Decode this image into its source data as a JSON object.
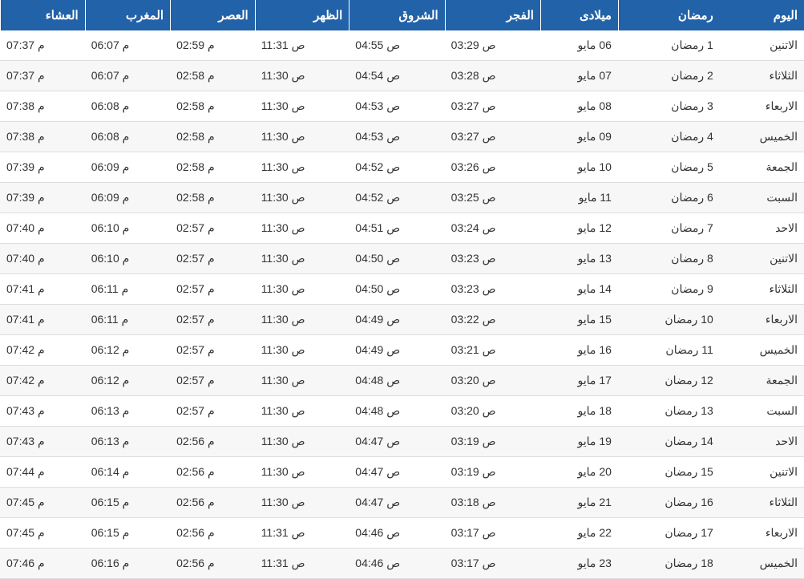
{
  "table": {
    "type": "table",
    "header_bg": "#2262a8",
    "header_color": "#ffffff",
    "row_alt_bg": "#f7f7f7",
    "row_bg": "#ffffff",
    "border_color": "#dddddd",
    "text_color": "#333333",
    "columns": [
      "اليوم",
      "رمضان",
      "ميلادى",
      "الفجر",
      "الشروق",
      "الظهر",
      "العصر",
      "المغرب",
      "العشاء"
    ],
    "rows": [
      [
        "الاتنين",
        "1 رمضان",
        "06 مايو",
        "03:29 ص",
        "04:55 ص",
        "11:31 ص",
        "02:59 م",
        "06:07 م",
        "07:37 م"
      ],
      [
        "الثلاثاء",
        "2 رمضان",
        "07 مايو",
        "03:28 ص",
        "04:54 ص",
        "11:30 ص",
        "02:58 م",
        "06:07 م",
        "07:37 م"
      ],
      [
        "الاربعاء",
        "3 رمضان",
        "08 مايو",
        "03:27 ص",
        "04:53 ص",
        "11:30 ص",
        "02:58 م",
        "06:08 م",
        "07:38 م"
      ],
      [
        "الخميس",
        "4 رمضان",
        "09 مايو",
        "03:27 ص",
        "04:53 ص",
        "11:30 ص",
        "02:58 م",
        "06:08 م",
        "07:38 م"
      ],
      [
        "الجمعة",
        "5 رمضان",
        "10 مايو",
        "03:26 ص",
        "04:52 ص",
        "11:30 ص",
        "02:58 م",
        "06:09 م",
        "07:39 م"
      ],
      [
        "السبت",
        "6 رمضان",
        "11 مايو",
        "03:25 ص",
        "04:52 ص",
        "11:30 ص",
        "02:58 م",
        "06:09 م",
        "07:39 م"
      ],
      [
        "الاحد",
        "7 رمضان",
        "12 مايو",
        "03:24 ص",
        "04:51 ص",
        "11:30 ص",
        "02:57 م",
        "06:10 م",
        "07:40 م"
      ],
      [
        "الاتنين",
        "8 رمضان",
        "13 مايو",
        "03:23 ص",
        "04:50 ص",
        "11:30 ص",
        "02:57 م",
        "06:10 م",
        "07:40 م"
      ],
      [
        "الثلاثاء",
        "9 رمضان",
        "14 مايو",
        "03:23 ص",
        "04:50 ص",
        "11:30 ص",
        "02:57 م",
        "06:11 م",
        "07:41 م"
      ],
      [
        "الاربعاء",
        "10 رمضان",
        "15 مايو",
        "03:22 ص",
        "04:49 ص",
        "11:30 ص",
        "02:57 م",
        "06:11 م",
        "07:41 م"
      ],
      [
        "الخميس",
        "11 رمضان",
        "16 مايو",
        "03:21 ص",
        "04:49 ص",
        "11:30 ص",
        "02:57 م",
        "06:12 م",
        "07:42 م"
      ],
      [
        "الجمعة",
        "12 رمضان",
        "17 مايو",
        "03:20 ص",
        "04:48 ص",
        "11:30 ص",
        "02:57 م",
        "06:12 م",
        "07:42 م"
      ],
      [
        "السبت",
        "13 رمضان",
        "18 مايو",
        "03:20 ص",
        "04:48 ص",
        "11:30 ص",
        "02:57 م",
        "06:13 م",
        "07:43 م"
      ],
      [
        "الاحد",
        "14 رمضان",
        "19 مايو",
        "03:19 ص",
        "04:47 ص",
        "11:30 ص",
        "02:56 م",
        "06:13 م",
        "07:43 م"
      ],
      [
        "الاتنين",
        "15 رمضان",
        "20 مايو",
        "03:19 ص",
        "04:47 ص",
        "11:30 ص",
        "02:56 م",
        "06:14 م",
        "07:44 م"
      ],
      [
        "الثلاثاء",
        "16 رمضان",
        "21 مايو",
        "03:18 ص",
        "04:47 ص",
        "11:30 ص",
        "02:56 م",
        "06:15 م",
        "07:45 م"
      ],
      [
        "الاربعاء",
        "17 رمضان",
        "22 مايو",
        "03:17 ص",
        "04:46 ص",
        "11:31 ص",
        "02:56 م",
        "06:15 م",
        "07:45 م"
      ],
      [
        "الخميس",
        "18 رمضان",
        "23 مايو",
        "03:17 ص",
        "04:46 ص",
        "11:31 ص",
        "02:56 م",
        "06:16 م",
        "07:46 م"
      ]
    ]
  }
}
